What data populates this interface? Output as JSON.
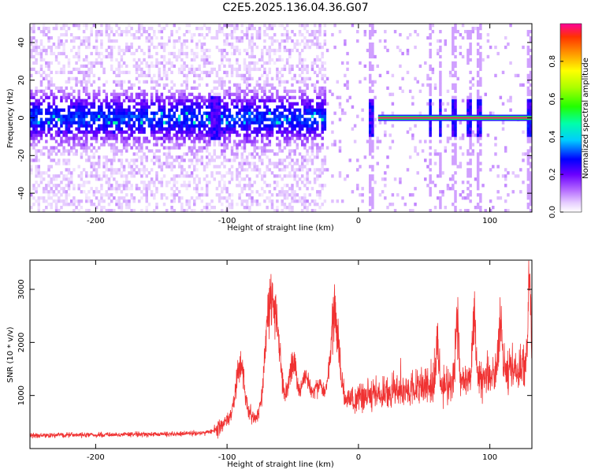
{
  "title": "C2E5.2025.136.04.36.G07",
  "chart_data": [
    {
      "type": "heatmap",
      "xlabel": "Height of straight line (km)",
      "ylabel": "Frequency (Hz)",
      "xlim": [
        -250,
        132
      ],
      "ylim": [
        -50,
        50
      ],
      "xticks": [
        -200,
        -100,
        0,
        100
      ],
      "yticks": [
        -40,
        -20,
        0,
        20,
        40
      ],
      "colorbar": {
        "label": "Normalized spectral amplitude",
        "range": [
          0,
          1
        ],
        "ticks": [
          "0.0",
          "0.2",
          "0.4",
          "0.6",
          "0.8"
        ],
        "tick_values": [
          0.0,
          0.2,
          0.4,
          0.6,
          0.8
        ]
      },
      "features": {
        "noise_band_x": [
          -250,
          -25
        ],
        "noise_band_halfwidth_hz": 8,
        "low_amplitude_gap_x": [
          -112,
          -105
        ],
        "onset_of_line_x": -25,
        "carrier_line_x": [
          15,
          132
        ],
        "carrier_line_frequency_hz": 0,
        "vertical_streaks_x": [
          10,
          55,
          62,
          73,
          84,
          92,
          130
        ]
      }
    },
    {
      "type": "line",
      "xlabel": "Height of straight line (km)",
      "ylabel": "SNR (10 * v/v)",
      "xlim": [
        -250,
        132
      ],
      "ylim": [
        0,
        3550
      ],
      "xticks": [
        -200,
        -100,
        0,
        100
      ],
      "yticks": [
        1000,
        2000,
        3000
      ],
      "color": "#f03232",
      "trend_x": [
        -250,
        -150,
        -120,
        -110,
        -100,
        -80,
        -50,
        -20,
        0,
        20,
        50,
        80,
        100,
        120,
        132
      ],
      "trend_y": [
        250,
        270,
        290,
        330,
        520,
        580,
        700,
        880,
        950,
        1050,
        1150,
        1250,
        1350,
        1500,
        1600
      ],
      "peaks": [
        {
          "x": -90,
          "y": 1900
        },
        {
          "x": -68,
          "y": 2900
        },
        {
          "x": -62,
          "y": 2400
        },
        {
          "x": -50,
          "y": 1800
        },
        {
          "x": -40,
          "y": 1500
        },
        {
          "x": -30,
          "y": 1300
        },
        {
          "x": -18,
          "y": 3050
        },
        {
          "x": 60,
          "y": 2300
        },
        {
          "x": 75,
          "y": 2700
        },
        {
          "x": 88,
          "y": 3000
        },
        {
          "x": 108,
          "y": 2800
        },
        {
          "x": 130,
          "y": 3500
        }
      ]
    }
  ]
}
